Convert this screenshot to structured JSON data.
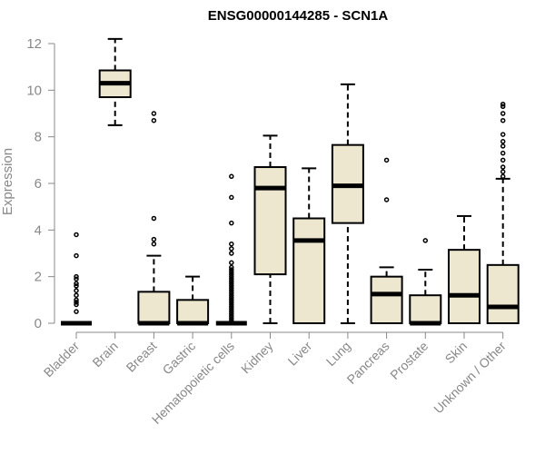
{
  "chart_data": {
    "type": "box",
    "title": "ENSG00000144285 - SCN1A",
    "xlabel": "",
    "ylabel": "Expression",
    "ylim": [
      0,
      12
    ],
    "yticks": [
      0,
      2,
      4,
      6,
      8,
      10,
      12
    ],
    "box_fill": "#ede7cf",
    "axis_color": "#888888",
    "categories": [
      "Bladder",
      "Brain",
      "Breast",
      "Gastric",
      "Hematopoietic cells",
      "Kidney",
      "Liver",
      "Lung",
      "Pancreas",
      "Prostate",
      "Skin",
      "Unknown / Other"
    ],
    "boxes": [
      {
        "category": "Bladder",
        "min": 0,
        "q1": 0,
        "median": 0,
        "q3": 0,
        "max": 0,
        "outliers": [
          0.5,
          0.8,
          0.9,
          1.0,
          1.2,
          1.4,
          1.6,
          1.7,
          1.9,
          2.0,
          2.9,
          3.8
        ]
      },
      {
        "category": "Brain",
        "min": 8.5,
        "q1": 9.7,
        "median": 10.3,
        "q3": 10.85,
        "max": 12.2,
        "outliers": []
      },
      {
        "category": "Breast",
        "min": 0,
        "q1": 0,
        "median": 0,
        "q3": 1.35,
        "max": 2.9,
        "outliers": [
          3.4,
          3.6,
          4.5,
          8.7,
          9.0
        ]
      },
      {
        "category": "Gastric",
        "min": 0,
        "q1": 0,
        "median": 0,
        "q3": 1.0,
        "max": 2.0,
        "outliers": []
      },
      {
        "category": "Hematopoietic cells",
        "min": 0,
        "q1": 0,
        "median": 0,
        "q3": 0,
        "max": 0,
        "outliers": [
          0.1,
          0.2,
          0.3,
          0.4,
          0.5,
          0.6,
          0.7,
          0.8,
          0.9,
          1.0,
          1.1,
          1.2,
          1.3,
          1.4,
          1.5,
          1.6,
          1.7,
          1.8,
          1.9,
          2.0,
          2.1,
          2.2,
          2.3,
          2.4,
          2.6,
          3.0,
          3.2,
          3.4,
          4.3,
          5.4,
          6.3
        ]
      },
      {
        "category": "Kidney",
        "min": 0,
        "q1": 2.1,
        "median": 5.8,
        "q3": 6.7,
        "max": 8.05,
        "outliers": []
      },
      {
        "category": "Liver",
        "min": 0,
        "q1": 0,
        "median": 3.55,
        "q3": 4.5,
        "max": 6.65,
        "outliers": []
      },
      {
        "category": "Lung",
        "min": 0,
        "q1": 4.3,
        "median": 5.9,
        "q3": 7.65,
        "max": 10.25,
        "outliers": []
      },
      {
        "category": "Pancreas",
        "min": 0,
        "q1": 0,
        "median": 1.25,
        "q3": 2.0,
        "max": 2.4,
        "outliers": [
          5.3,
          7.0
        ]
      },
      {
        "category": "Prostate",
        "min": 0,
        "q1": 0,
        "median": 0,
        "q3": 1.2,
        "max": 2.3,
        "outliers": [
          3.55
        ]
      },
      {
        "category": "Skin",
        "min": 0,
        "q1": 0,
        "median": 1.2,
        "q3": 3.15,
        "max": 4.6,
        "outliers": []
      },
      {
        "category": "Unknown / Other",
        "min": 0,
        "q1": 0,
        "median": 0.7,
        "q3": 2.5,
        "max": 6.2,
        "outliers": [
          6.3,
          6.5,
          6.7,
          7.0,
          7.3,
          7.6,
          7.8,
          8.1,
          8.7,
          9.0,
          9.3,
          9.4
        ]
      }
    ]
  }
}
